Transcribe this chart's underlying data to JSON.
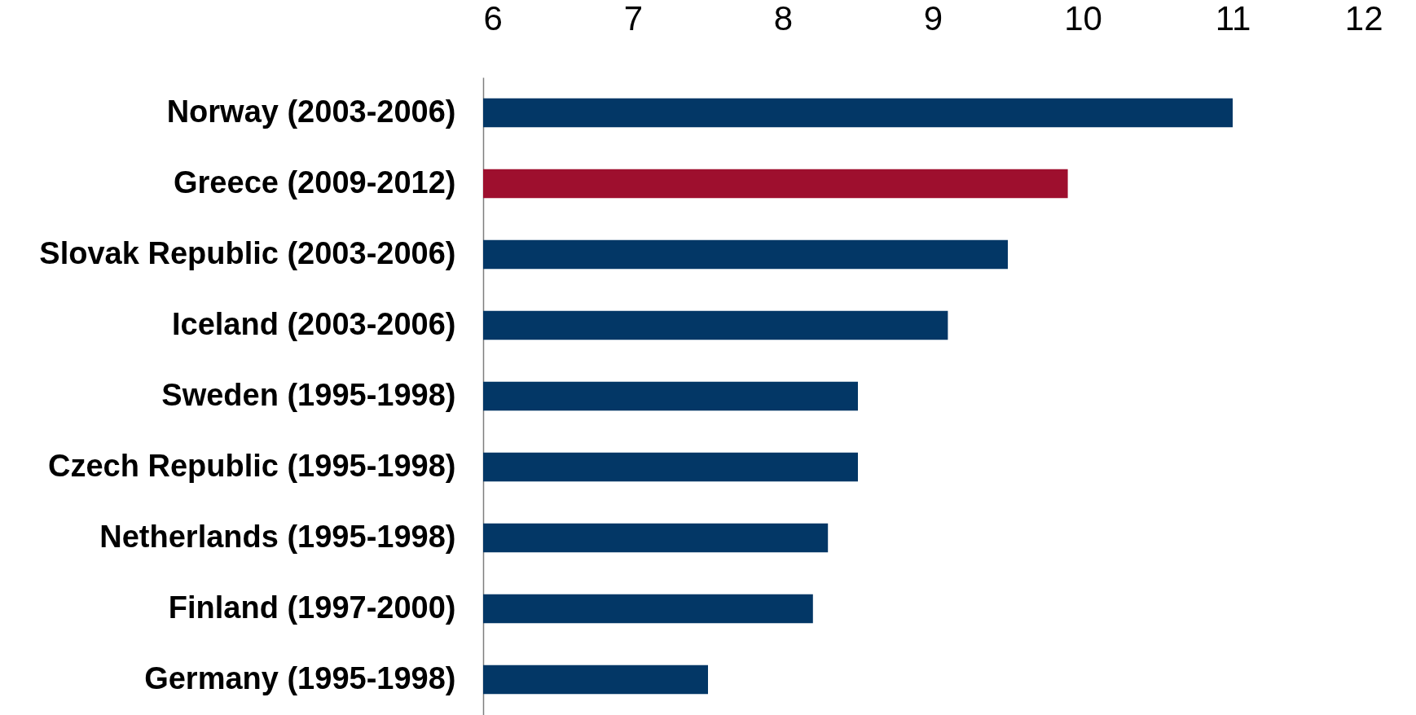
{
  "chart_data": {
    "type": "bar",
    "orientation": "horizontal",
    "categories": [
      "Norway (2003-2006)",
      "Greece (2009-2012)",
      "Slovak Republic (2003-2006)",
      "Iceland (2003-2006)",
      "Sweden (1995-1998)",
      "Czech Republic (1995-1998)",
      "Netherlands (1995-1998)",
      "Finland (1997-2000)",
      "Germany (1995-1998)"
    ],
    "values": [
      11.0,
      9.9,
      9.5,
      9.1,
      8.5,
      8.5,
      8.3,
      8.2,
      7.5
    ],
    "colors": [
      "#033766",
      "#9e0f2e",
      "#033766",
      "#033766",
      "#033766",
      "#033766",
      "#033766",
      "#033766",
      "#033766"
    ],
    "xlim": [
      6,
      12
    ],
    "xticks": [
      6,
      7,
      8,
      9,
      10,
      11,
      12
    ]
  }
}
